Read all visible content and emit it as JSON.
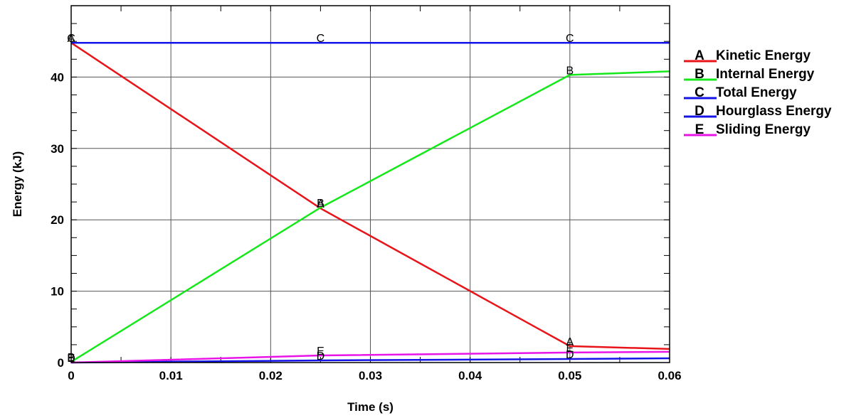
{
  "chart_data": {
    "type": "line",
    "title": "",
    "xlabel": "Time (s)",
    "ylabel": "Energy (kJ)",
    "xlim": [
      0,
      0.06
    ],
    "ylim": [
      0,
      50
    ],
    "x_ticks": [
      0,
      0.01,
      0.02,
      0.03,
      0.04,
      0.05,
      0.06
    ],
    "x_tick_labels": [
      "0",
      "0.01",
      "0.02",
      "0.03",
      "0.04",
      "0.05",
      "0.06"
    ],
    "y_ticks": [
      0,
      10,
      20,
      30,
      40
    ],
    "y_tick_labels": [
      "0",
      "10",
      "20",
      "30",
      "40"
    ],
    "grid": true,
    "legend_position": "right",
    "series": [
      {
        "letter": "A",
        "name": "Kinetic Energy",
        "color": "#e8141a",
        "x": [
          0,
          0.025,
          0.05,
          0.06
        ],
        "y": [
          44.8,
          21.6,
          2.3,
          1.9
        ],
        "marker_x": [
          0,
          0.025,
          0.05
        ]
      },
      {
        "letter": "B",
        "name": "Internal Energy",
        "color": "#14e81a",
        "x": [
          0,
          0.025,
          0.05,
          0.06
        ],
        "y": [
          0.1,
          21.7,
          40.3,
          40.8
        ],
        "marker_x": [
          0,
          0.025,
          0.05
        ]
      },
      {
        "letter": "C",
        "name": "Total Energy",
        "color": "#1414e8",
        "x": [
          0,
          0.025,
          0.05,
          0.06
        ],
        "y": [
          44.8,
          44.8,
          44.8,
          44.8
        ],
        "marker_x": [
          0,
          0.025,
          0.05
        ]
      },
      {
        "letter": "D",
        "name": "Hourglass Energy",
        "color": "#1414e8",
        "x": [
          0,
          0.025,
          0.05,
          0.06
        ],
        "y": [
          0.0,
          0.3,
          0.5,
          0.6
        ],
        "marker_x": [
          0,
          0.025,
          0.05
        ]
      },
      {
        "letter": "E",
        "name": "Sliding Energy",
        "color": "#e814e8",
        "x": [
          0,
          0.025,
          0.05,
          0.06
        ],
        "y": [
          0.0,
          1.0,
          1.4,
          1.5
        ],
        "marker_x": [
          0,
          0.025,
          0.05
        ]
      }
    ]
  }
}
